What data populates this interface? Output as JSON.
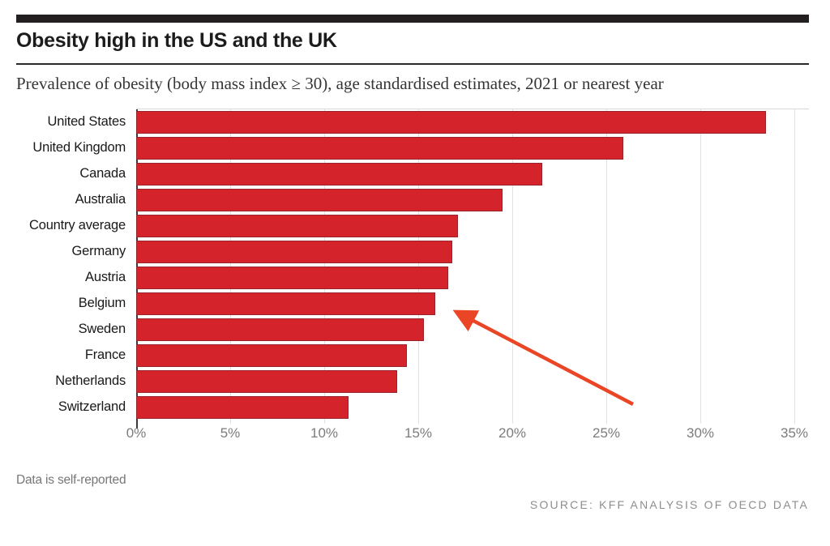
{
  "header": {
    "title": "Obesity high in the US and the UK",
    "subtitle": "Prevalence of obesity (body mass index ≥ 30), age standardised estimates, 2021 or nearest year"
  },
  "chart_data": {
    "type": "bar",
    "orientation": "horizontal",
    "title": "Obesity high in the US and the UK",
    "subtitle": "Prevalence of obesity (body mass index ≥ 30), age standardised estimates, 2021 or nearest year",
    "categories": [
      "United States",
      "United Kingdom",
      "Canada",
      "Australia",
      "Country average",
      "Germany",
      "Austria",
      "Belgium",
      "Sweden",
      "France",
      "Netherlands",
      "Switzerland"
    ],
    "values": [
      33.5,
      25.9,
      21.6,
      19.5,
      17.1,
      16.8,
      16.6,
      15.9,
      15.3,
      14.4,
      13.9,
      11.3
    ],
    "unit": "%",
    "xlim": [
      0,
      35
    ],
    "x_ticks": [
      "0%",
      "5%",
      "10%",
      "15%",
      "20%",
      "25%",
      "30%",
      "35%"
    ],
    "grid": true,
    "bar_color": "#d5232b",
    "annotation": {
      "type": "arrow",
      "points_to": "Belgium",
      "color": "#ea4626"
    }
  },
  "footer": {
    "note": "Data is self-reported",
    "source": "SOURCE: KFF ANALYSIS OF OECD DATA"
  },
  "colors": {
    "accent_bar": "#231f20",
    "bar": "#d5232b",
    "arrow": "#ea4626",
    "gridline": "#e2e2e2",
    "tick_text": "#7c7c7c"
  }
}
